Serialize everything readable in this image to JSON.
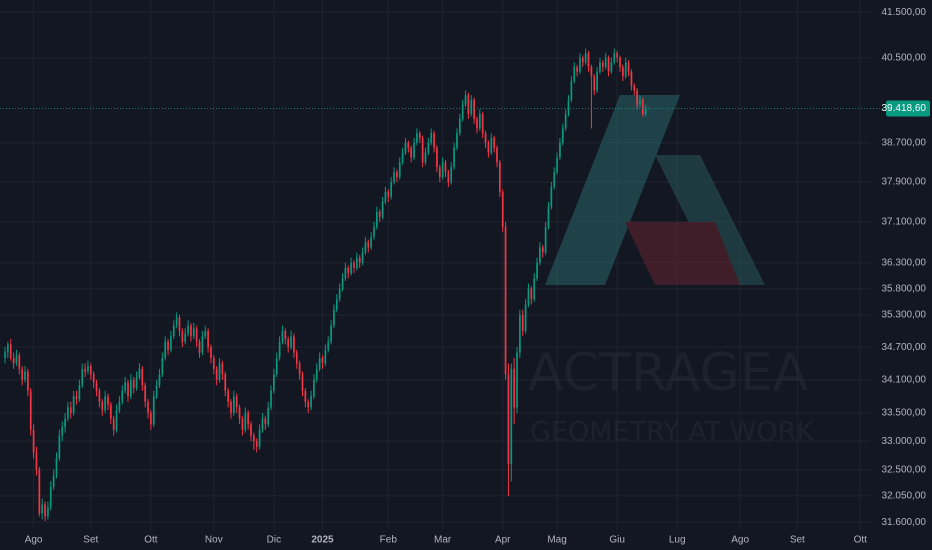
{
  "chart_data": {
    "type": "candlestick",
    "log_scale": true,
    "grid": true,
    "up_color": "#089981",
    "down_color": "#f23645",
    "watermark": {
      "name": "ACTRAGEA",
      "tagline": "GEOMETRY AT WORK"
    },
    "last_price_label": "39.418,60",
    "ylim": [
      31470,
      41770
    ],
    "yticks": [
      {
        "value": 41500,
        "label": "41.500,00"
      },
      {
        "value": 40500,
        "label": "40.500,00"
      },
      {
        "value": 38700,
        "label": "38.700,00"
      },
      {
        "value": 37900,
        "label": "37.900,00"
      },
      {
        "value": 37100,
        "label": "37.100,00"
      },
      {
        "value": 36300,
        "label": "36.300,00"
      },
      {
        "value": 35800,
        "label": "35.800,00"
      },
      {
        "value": 35300,
        "label": "35.300,00"
      },
      {
        "value": 34700,
        "label": "34.700,00"
      },
      {
        "value": 34100,
        "label": "34.100,00"
      },
      {
        "value": 33500,
        "label": "33.500,00"
      },
      {
        "value": 33000,
        "label": "33.000,00"
      },
      {
        "value": 32500,
        "label": "32.500,00"
      },
      {
        "value": 32050,
        "label": "32.050,00"
      },
      {
        "value": 31600,
        "label": "31.600,00"
      }
    ],
    "xlim": [
      -1.75,
      302.4
    ],
    "xticks": [
      {
        "value": 10,
        "label": "Ago"
      },
      {
        "value": 30,
        "label": "Set"
      },
      {
        "value": 51,
        "label": "Ott"
      },
      {
        "value": 73,
        "label": "Nov"
      },
      {
        "value": 94,
        "label": "Dic"
      },
      {
        "value": 111,
        "label": "2025"
      },
      {
        "value": 134,
        "label": "Feb"
      },
      {
        "value": 153,
        "label": "Mar"
      },
      {
        "value": 174,
        "label": "Apr"
      },
      {
        "value": 193,
        "label": "Mag"
      },
      {
        "value": 214,
        "label": "Giu"
      },
      {
        "value": 235,
        "label": "Lug"
      },
      {
        "value": 257,
        "label": "Ago"
      },
      {
        "value": 277,
        "label": "Set"
      },
      {
        "value": 299,
        "label": "Ott"
      }
    ],
    "candles": [
      [
        34500,
        34700,
        34400,
        34600
      ],
      [
        34600,
        34800,
        34500,
        34750
      ],
      [
        34750,
        34850,
        34450,
        34500
      ],
      [
        34500,
        34600,
        34300,
        34400
      ],
      [
        34400,
        34650,
        34350,
        34550
      ],
      [
        34550,
        34600,
        34200,
        34300
      ],
      [
        34300,
        34350,
        34000,
        34100
      ],
      [
        34100,
        34350,
        34050,
        34250
      ],
      [
        34250,
        34300,
        33800,
        33900
      ],
      [
        33900,
        33950,
        33100,
        33200
      ],
      [
        33200,
        33300,
        32700,
        32800
      ],
      [
        32800,
        32900,
        32400,
        32500
      ],
      [
        32500,
        32550,
        31700,
        31750
      ],
      [
        31750,
        32000,
        31650,
        31900
      ],
      [
        31900,
        31950,
        31620,
        31700
      ],
      [
        31700,
        31950,
        31650,
        31850
      ],
      [
        31850,
        32300,
        31800,
        32200
      ],
      [
        32200,
        32500,
        32150,
        32400
      ],
      [
        32400,
        32800,
        32350,
        32700
      ],
      [
        32700,
        33200,
        32650,
        33100
      ],
      [
        33100,
        33350,
        33000,
        33250
      ],
      [
        33250,
        33500,
        33150,
        33400
      ],
      [
        33400,
        33700,
        33350,
        33600
      ],
      [
        33600,
        33700,
        33400,
        33500
      ],
      [
        33500,
        33900,
        33450,
        33800
      ],
      [
        33800,
        33900,
        33650,
        33750
      ],
      [
        33750,
        34100,
        33700,
        34000
      ],
      [
        34000,
        34400,
        33950,
        34300
      ],
      [
        34300,
        34400,
        34150,
        34250
      ],
      [
        34250,
        34450,
        34200,
        34350
      ],
      [
        34350,
        34400,
        34100,
        34200
      ],
      [
        34200,
        34250,
        33950,
        34050
      ],
      [
        34050,
        34100,
        33800,
        33900
      ],
      [
        33900,
        33950,
        33600,
        33700
      ],
      [
        33700,
        33750,
        33450,
        33550
      ],
      [
        33550,
        33900,
        33500,
        33800
      ],
      [
        33800,
        33850,
        33550,
        33650
      ],
      [
        33650,
        33700,
        33300,
        33400
      ],
      [
        33400,
        33450,
        33100,
        33200
      ],
      [
        33200,
        33650,
        33150,
        33550
      ],
      [
        33550,
        33800,
        33500,
        33700
      ],
      [
        33700,
        34000,
        33650,
        33900
      ],
      [
        33900,
        34150,
        33850,
        34050
      ],
      [
        34050,
        34100,
        33700,
        33800
      ],
      [
        33800,
        34200,
        33750,
        34100
      ],
      [
        34100,
        34150,
        33850,
        33950
      ],
      [
        33950,
        34250,
        33900,
        34150
      ],
      [
        34150,
        34400,
        34100,
        34300
      ],
      [
        34300,
        34350,
        33900,
        34000
      ],
      [
        34000,
        34050,
        33600,
        33700
      ],
      [
        33700,
        33750,
        33400,
        33500
      ],
      [
        33500,
        33550,
        33200,
        33300
      ],
      [
        33300,
        33900,
        33250,
        33800
      ],
      [
        33800,
        34100,
        33750,
        34000
      ],
      [
        34000,
        34300,
        33950,
        34200
      ],
      [
        34200,
        34600,
        34150,
        34500
      ],
      [
        34500,
        34900,
        34450,
        34800
      ],
      [
        34800,
        34850,
        34550,
        34650
      ],
      [
        34650,
        35000,
        34600,
        34900
      ],
      [
        34900,
        35200,
        34850,
        35100
      ],
      [
        35100,
        35350,
        35050,
        35250
      ],
      [
        35250,
        35300,
        34900,
        35000
      ],
      [
        35000,
        35050,
        34700,
        34800
      ],
      [
        34800,
        35050,
        34750,
        34950
      ],
      [
        34950,
        35200,
        34900,
        35100
      ],
      [
        35100,
        35150,
        34800,
        34900
      ],
      [
        34900,
        35150,
        34850,
        35050
      ],
      [
        35050,
        35100,
        34700,
        34800
      ],
      [
        34800,
        34850,
        34500,
        34600
      ],
      [
        34600,
        35000,
        34550,
        34900
      ],
      [
        34900,
        35100,
        34850,
        35000
      ],
      [
        35000,
        35050,
        34600,
        34700
      ],
      [
        34700,
        34750,
        34400,
        34500
      ],
      [
        34500,
        34550,
        34200,
        34300
      ],
      [
        34300,
        34350,
        34000,
        34100
      ],
      [
        34100,
        34500,
        34050,
        34400
      ],
      [
        34400,
        34450,
        34100,
        34200
      ],
      [
        34200,
        34250,
        33800,
        33900
      ],
      [
        33900,
        33950,
        33600,
        33700
      ],
      [
        33700,
        33750,
        33400,
        33500
      ],
      [
        33500,
        33900,
        33450,
        33800
      ],
      [
        33800,
        33850,
        33500,
        33600
      ],
      [
        33600,
        33650,
        33300,
        33400
      ],
      [
        33400,
        33450,
        33100,
        33200
      ],
      [
        33200,
        33600,
        33150,
        33500
      ],
      [
        33500,
        33550,
        33200,
        33300
      ],
      [
        33300,
        33350,
        33000,
        33100
      ],
      [
        33100,
        33150,
        32850,
        33000
      ],
      [
        33000,
        33050,
        32800,
        32900
      ],
      [
        32900,
        33300,
        32850,
        33200
      ],
      [
        33200,
        33500,
        33150,
        33400
      ],
      [
        33400,
        33450,
        33200,
        33300
      ],
      [
        33300,
        33700,
        33250,
        33600
      ],
      [
        33600,
        34000,
        33550,
        33900
      ],
      [
        33900,
        34300,
        33850,
        34200
      ],
      [
        34200,
        34600,
        34150,
        34500
      ],
      [
        34500,
        34900,
        34450,
        34800
      ],
      [
        34800,
        35100,
        34750,
        35000
      ],
      [
        35000,
        35050,
        34750,
        34850
      ],
      [
        34850,
        34900,
        34600,
        34700
      ],
      [
        34700,
        35000,
        34650,
        34900
      ],
      [
        34900,
        34950,
        34500,
        34600
      ],
      [
        34600,
        34650,
        34300,
        34400
      ],
      [
        34400,
        34450,
        34100,
        34200
      ],
      [
        34200,
        34250,
        33800,
        33900
      ],
      [
        33900,
        33950,
        33600,
        33700
      ],
      [
        33700,
        33750,
        33500,
        33600
      ],
      [
        33600,
        33900,
        33550,
        33800
      ],
      [
        33800,
        34200,
        33750,
        34100
      ],
      [
        34100,
        34400,
        34050,
        34300
      ],
      [
        34300,
        34600,
        34250,
        34500
      ],
      [
        34500,
        34550,
        34300,
        34400
      ],
      [
        34400,
        34750,
        34350,
        34650
      ],
      [
        34650,
        34900,
        34600,
        34800
      ],
      [
        34800,
        35200,
        34750,
        35100
      ],
      [
        35100,
        35500,
        35050,
        35400
      ],
      [
        35400,
        35700,
        35350,
        35600
      ],
      [
        35600,
        35900,
        35550,
        35800
      ],
      [
        35800,
        36100,
        35750,
        36000
      ],
      [
        36000,
        36300,
        35950,
        36200
      ],
      [
        36200,
        36250,
        36000,
        36100
      ],
      [
        36100,
        36400,
        36050,
        36300
      ],
      [
        36300,
        36350,
        36100,
        36200
      ],
      [
        36200,
        36500,
        36150,
        36400
      ],
      [
        36400,
        36450,
        36200,
        36300
      ],
      [
        36300,
        36600,
        36250,
        36500
      ],
      [
        36500,
        36800,
        36450,
        36700
      ],
      [
        36700,
        36750,
        36500,
        36600
      ],
      [
        36600,
        36900,
        36550,
        36800
      ],
      [
        36800,
        37100,
        36750,
        37000
      ],
      [
        37000,
        37400,
        36950,
        37300
      ],
      [
        37300,
        37350,
        37100,
        37200
      ],
      [
        37200,
        37600,
        37150,
        37500
      ],
      [
        37500,
        37800,
        37450,
        37700
      ],
      [
        37700,
        37750,
        37500,
        37600
      ],
      [
        37600,
        38000,
        37550,
        37900
      ],
      [
        37900,
        38200,
        37850,
        38100
      ],
      [
        38100,
        38150,
        37900,
        38000
      ],
      [
        38000,
        38400,
        37950,
        38300
      ],
      [
        38300,
        38600,
        38250,
        38500
      ],
      [
        38500,
        38800,
        38450,
        38700
      ],
      [
        38700,
        38750,
        38500,
        38600
      ],
      [
        38600,
        38650,
        38300,
        38400
      ],
      [
        38400,
        38800,
        38350,
        38700
      ],
      [
        38700,
        39000,
        38650,
        38900
      ],
      [
        38900,
        38950,
        38700,
        38800
      ],
      [
        38800,
        38850,
        38200,
        38300
      ],
      [
        38300,
        38600,
        38250,
        38500
      ],
      [
        38500,
        38800,
        38450,
        38700
      ],
      [
        38700,
        39000,
        38650,
        38900
      ],
      [
        38900,
        38950,
        38500,
        38600
      ],
      [
        38600,
        38650,
        38100,
        38200
      ],
      [
        38200,
        38250,
        37900,
        38000
      ],
      [
        38000,
        38400,
        37950,
        38300
      ],
      [
        38300,
        38350,
        38000,
        38100
      ],
      [
        38100,
        38150,
        37800,
        37900
      ],
      [
        37900,
        38300,
        37850,
        38200
      ],
      [
        38200,
        38700,
        38150,
        38600
      ],
      [
        38600,
        39000,
        38550,
        38900
      ],
      [
        38900,
        39300,
        38850,
        39200
      ],
      [
        39200,
        39600,
        39150,
        39500
      ],
      [
        39500,
        39800,
        39450,
        39700
      ],
      [
        39700,
        39750,
        39200,
        39300
      ],
      [
        39300,
        39700,
        39250,
        39600
      ],
      [
        39600,
        39650,
        39100,
        39200
      ],
      [
        39200,
        39250,
        38900,
        39000
      ],
      [
        39000,
        39400,
        38950,
        39300
      ],
      [
        39300,
        39350,
        38800,
        38900
      ],
      [
        38900,
        38950,
        38600,
        38700
      ],
      [
        38700,
        38750,
        38400,
        38500
      ],
      [
        38500,
        38900,
        38450,
        38800
      ],
      [
        38800,
        38850,
        38500,
        38600
      ],
      [
        38600,
        38650,
        38200,
        38300
      ],
      [
        38300,
        38350,
        37600,
        37700
      ],
      [
        37700,
        37750,
        36900,
        37000
      ],
      [
        37000,
        37100,
        34100,
        34200
      ],
      [
        34200,
        34400,
        32050,
        32600
      ],
      [
        32600,
        34400,
        32300,
        34300
      ],
      [
        34300,
        34500,
        33300,
        33600
      ],
      [
        33600,
        34700,
        33500,
        34600
      ],
      [
        34600,
        35400,
        34500,
        35300
      ],
      [
        35300,
        35400,
        34900,
        35000
      ],
      [
        35000,
        35600,
        34950,
        35500
      ],
      [
        35500,
        35900,
        35450,
        35800
      ],
      [
        35800,
        35850,
        35500,
        35600
      ],
      [
        35600,
        36100,
        35550,
        36000
      ],
      [
        36000,
        36400,
        35950,
        36300
      ],
      [
        36300,
        36700,
        36250,
        36600
      ],
      [
        36600,
        36650,
        36400,
        36500
      ],
      [
        36500,
        37100,
        36450,
        37000
      ],
      [
        37000,
        37500,
        36950,
        37400
      ],
      [
        37400,
        37900,
        37350,
        37800
      ],
      [
        37800,
        38200,
        37750,
        38100
      ],
      [
        38100,
        38500,
        38050,
        38400
      ],
      [
        38400,
        38800,
        38350,
        38700
      ],
      [
        38700,
        39100,
        38650,
        39000
      ],
      [
        39000,
        39400,
        38950,
        39300
      ],
      [
        39300,
        39700,
        39250,
        39600
      ],
      [
        39600,
        40100,
        39550,
        40000
      ],
      [
        40000,
        40400,
        39950,
        40300
      ],
      [
        40300,
        40350,
        40100,
        40200
      ],
      [
        40200,
        40600,
        40150,
        40500
      ],
      [
        40500,
        40550,
        40300,
        40400
      ],
      [
        40400,
        40700,
        40350,
        40600
      ],
      [
        40600,
        40650,
        40200,
        40300
      ],
      [
        40300,
        40350,
        39000,
        40100
      ],
      [
        40100,
        40150,
        39700,
        39800
      ],
      [
        39800,
        40300,
        39750,
        40200
      ],
      [
        40200,
        40500,
        40150,
        40400
      ],
      [
        40400,
        40450,
        40200,
        40300
      ],
      [
        40300,
        40600,
        40250,
        40500
      ],
      [
        40500,
        40550,
        40100,
        40200
      ],
      [
        40200,
        40500,
        40150,
        40400
      ],
      [
        40400,
        40700,
        40350,
        40600
      ],
      [
        40600,
        40650,
        40400,
        40500
      ],
      [
        40500,
        40550,
        40200,
        40300
      ],
      [
        40300,
        40350,
        40000,
        40100
      ],
      [
        40100,
        40500,
        40050,
        40400
      ],
      [
        40400,
        40450,
        40100,
        40200
      ],
      [
        40200,
        40250,
        39800,
        39900
      ],
      [
        39900,
        39950,
        39700,
        39800
      ],
      [
        39800,
        39850,
        39400,
        39500
      ],
      [
        39500,
        39700,
        39450,
        39600
      ],
      [
        39600,
        39650,
        39250,
        39300
      ],
      [
        39300,
        39500,
        39250,
        39418.6
      ]
    ]
  }
}
